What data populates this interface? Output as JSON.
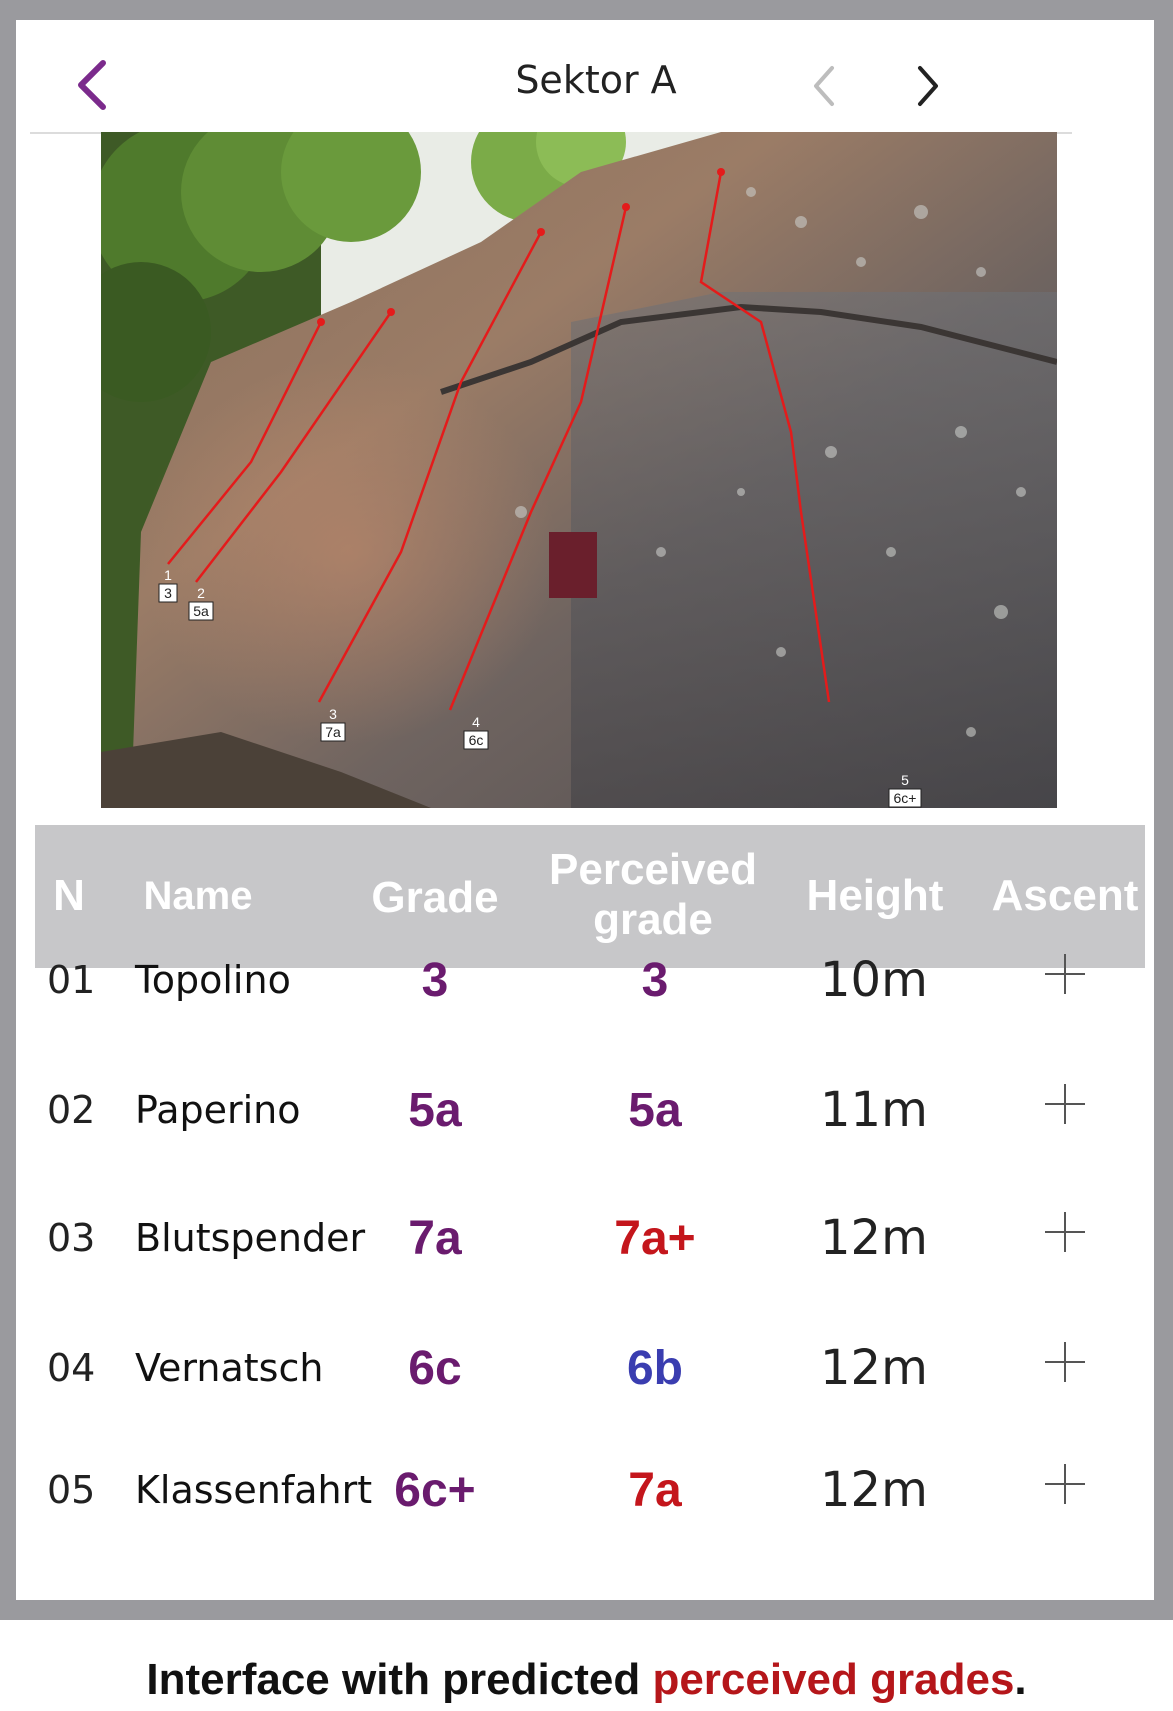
{
  "header": {
    "title": "Sektor A"
  },
  "photo": {
    "route_tags": [
      {
        "n": "1",
        "g": "3"
      },
      {
        "n": "2",
        "g": "5a"
      },
      {
        "n": "3",
        "g": "7a"
      },
      {
        "n": "4",
        "g": "6c"
      },
      {
        "n": "5",
        "g": "6c+"
      }
    ]
  },
  "table": {
    "columns": {
      "n": "N",
      "name": "Name",
      "grade": "Grade",
      "perceived_line1": "Perceived",
      "perceived_line2": "grade",
      "height": "Height",
      "ascent": "Ascent"
    },
    "rows": [
      {
        "n": "01",
        "name": "Topolino",
        "grade": "3",
        "perceived": "3",
        "perceived_color": "#6a1b6e",
        "height": "10m"
      },
      {
        "n": "02",
        "name": "Paperino",
        "grade": "5a",
        "perceived": "5a",
        "perceived_color": "#6a1b6e",
        "height": "11m"
      },
      {
        "n": "03",
        "name": "Blutspender",
        "grade": "7a",
        "perceived": "7a+",
        "perceived_color": "#c4161c",
        "height": "12m"
      },
      {
        "n": "04",
        "name": "Vernatsch",
        "grade": "6c",
        "perceived": "6b",
        "perceived_color": "#3a3db0",
        "height": "12m"
      },
      {
        "n": "05",
        "name": "Klassenfahrt",
        "grade": "6c+",
        "perceived": "7a",
        "perceived_color": "#c4161c",
        "height": "12m"
      }
    ]
  },
  "colors": {
    "accent": "#7b2a8c",
    "grade": "#6a1b6e",
    "harder": "#c4161c",
    "easier": "#3a3db0"
  },
  "caption": {
    "prefix": "Interface with predicted ",
    "accent": "perceived grades",
    "suffix": "."
  }
}
